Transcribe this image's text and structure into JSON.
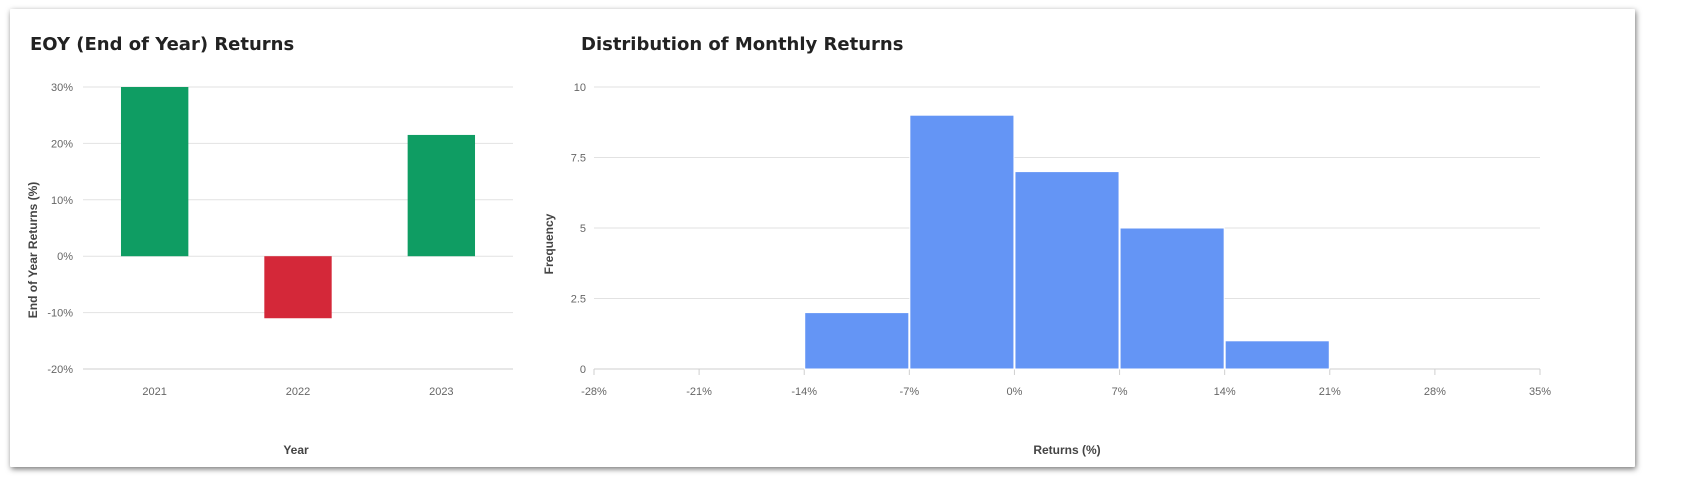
{
  "colors": {
    "positive": "#0f9d63",
    "negative": "#d42839",
    "histogram": "#6495f5",
    "grid": "#e2e2e2",
    "axis": "#cfcfcf"
  },
  "chart_data": [
    {
      "type": "bar",
      "title": "EOY (End of Year) Returns",
      "xlabel": "Year",
      "ylabel": "End of Year Returns (%)",
      "categories": [
        "2021",
        "2022",
        "2023"
      ],
      "values": [
        30,
        -11,
        21.5
      ],
      "ylim": [
        -20,
        30
      ],
      "yticks": [
        30,
        20,
        10,
        0,
        -10,
        -20
      ],
      "ytick_labels": [
        "30%",
        "20%",
        "10%",
        "0%",
        "-10%",
        "-20%"
      ],
      "grid": true,
      "legend": "none"
    },
    {
      "type": "bar",
      "title": "Distribution of Monthly Returns",
      "xlabel": "Returns (%)",
      "ylabel": "Frequency",
      "bins": [
        {
          "x0": -14,
          "x1": -7,
          "count": 2
        },
        {
          "x0": -7,
          "x1": 0,
          "count": 9
        },
        {
          "x0": 0,
          "x1": 7,
          "count": 7
        },
        {
          "x0": 7,
          "x1": 14,
          "count": 5
        },
        {
          "x0": 14,
          "x1": 21,
          "count": 1
        }
      ],
      "xlim": [
        -28,
        35
      ],
      "xticks": [
        -28,
        -21,
        -14,
        -7,
        0,
        7,
        14,
        21,
        28,
        35
      ],
      "xtick_labels": [
        "-28%",
        "-21%",
        "-14%",
        "-7%",
        "0%",
        "7%",
        "14%",
        "21%",
        "28%",
        "35%"
      ],
      "ylim": [
        0,
        10
      ],
      "yticks": [
        10,
        7.5,
        5,
        2.5,
        0
      ],
      "ytick_labels": [
        "10",
        "7.5",
        "5",
        "2.5",
        "0"
      ],
      "grid": true,
      "legend": "none"
    }
  ]
}
